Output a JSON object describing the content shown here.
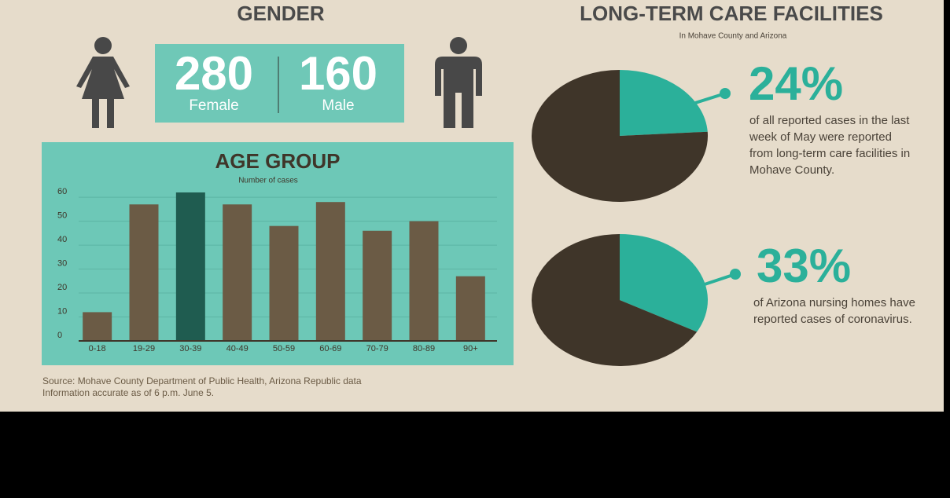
{
  "gender": {
    "title": "GENDER",
    "female": {
      "count": 280,
      "label": "Female"
    },
    "male": {
      "count": 160,
      "label": "Male"
    }
  },
  "ltc_section": {
    "title": "LONG-TERM CARE FACILITIES",
    "subtitle": "In Mohave County and Arizona"
  },
  "chart_data": [
    {
      "type": "bar",
      "title": "AGE GROUP",
      "subtitle": "Number of cases",
      "categories": [
        "0-18",
        "19-29",
        "30-39",
        "40-49",
        "50-59",
        "60-69",
        "70-79",
        "80-89",
        "90+"
      ],
      "values": [
        12,
        57,
        62,
        57,
        48,
        58,
        46,
        50,
        27
      ],
      "colors": [
        "#6b5b45",
        "#6b5b45",
        "#1f5c50",
        "#6b5b45",
        "#6b5b45",
        "#6b5b45",
        "#6b5b45",
        "#6b5b45",
        "#6b5b45"
      ],
      "ylim": [
        0,
        62
      ],
      "yticks": [
        0,
        10,
        20,
        30,
        40,
        50,
        60
      ],
      "grid": true
    },
    {
      "type": "pie",
      "values": [
        24,
        76
      ],
      "value_labels": [
        "24%",
        null
      ],
      "colors": [
        "#2bb09a",
        "#3f3529"
      ],
      "annotation": "of all reported cases in the last week of May were reported from long-term care facilities in Mohave County."
    },
    {
      "type": "pie",
      "values": [
        33,
        67
      ],
      "value_labels": [
        "33%",
        null
      ],
      "colors": [
        "#2bb09a",
        "#3f3529"
      ],
      "annotation": "of Arizona nursing homes have reported cases of coronavirus."
    }
  ],
  "source": [
    "Source: Mohave County Department of Public Health, Arizona Republic data",
    "Information accurate as of 6 p.m. June 5."
  ]
}
